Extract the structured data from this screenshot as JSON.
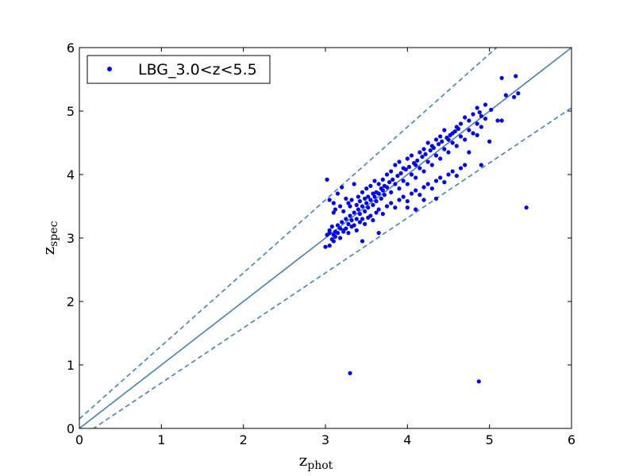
{
  "colors": {
    "points": "#0000ff",
    "lines": "#4682b4",
    "frame": "#000000",
    "background": "#ffffff"
  },
  "chart_data": {
    "type": "scatter",
    "title": "",
    "xlabel": {
      "main": "z",
      "sub": "phot"
    },
    "ylabel": {
      "main": "z",
      "sub": "spec"
    },
    "xlim": [
      0,
      6
    ],
    "ylim": [
      0,
      6
    ],
    "x_ticks": [
      "0",
      "1",
      "2",
      "3",
      "4",
      "5",
      "6"
    ],
    "y_ticks": [
      "0",
      "1",
      "2",
      "3",
      "4",
      "5",
      "6"
    ],
    "grid": false,
    "legend": {
      "position": "top-left",
      "entries": [
        "LBG_3.0<z<5.5"
      ]
    },
    "reference_lines": [
      {
        "label": "",
        "style": "solid",
        "points": [
          [
            0,
            0
          ],
          [
            6,
            6
          ]
        ]
      },
      {
        "label": "",
        "style": "dashed",
        "points": [
          [
            0,
            0.15
          ],
          [
            6,
            7.05
          ]
        ]
      },
      {
        "label": "",
        "style": "dashed",
        "points": [
          [
            0,
            -0.15
          ],
          [
            6,
            5.05
          ]
        ]
      }
    ],
    "series": [
      {
        "name": "LBG_3.0<z<5.5",
        "points": [
          [
            3.0,
            2.86
          ],
          [
            3.05,
            2.88
          ],
          [
            3.1,
            2.95
          ],
          [
            3.02,
            3.05
          ],
          [
            3.05,
            3.12
          ],
          [
            3.08,
            3.18
          ],
          [
            3.1,
            3.05
          ],
          [
            3.12,
            3.1
          ],
          [
            3.15,
            3.2
          ],
          [
            3.18,
            3.15
          ],
          [
            3.2,
            3.25
          ],
          [
            3.22,
            3.1
          ],
          [
            3.25,
            3.3
          ],
          [
            3.28,
            3.22
          ],
          [
            3.3,
            3.35
          ],
          [
            3.32,
            3.28
          ],
          [
            3.35,
            3.4
          ],
          [
            3.38,
            3.3
          ],
          [
            3.4,
            3.45
          ],
          [
            3.42,
            3.38
          ],
          [
            3.45,
            3.5
          ],
          [
            3.48,
            3.42
          ],
          [
            3.5,
            3.55
          ],
          [
            3.52,
            3.48
          ],
          [
            3.55,
            3.6
          ],
          [
            3.58,
            3.52
          ],
          [
            3.6,
            3.65
          ],
          [
            3.62,
            3.58
          ],
          [
            3.65,
            3.7
          ],
          [
            3.68,
            3.62
          ],
          [
            3.7,
            3.75
          ],
          [
            3.72,
            3.68
          ],
          [
            3.75,
            3.8
          ],
          [
            3.8,
            3.72
          ],
          [
            3.85,
            3.85
          ],
          [
            3.9,
            3.78
          ],
          [
            3.95,
            3.9
          ],
          [
            4.0,
            3.85
          ],
          [
            4.05,
            4.0
          ],
          [
            4.1,
            3.95
          ],
          [
            4.15,
            4.1
          ],
          [
            4.2,
            4.05
          ],
          [
            4.25,
            4.2
          ],
          [
            4.3,
            4.15
          ],
          [
            4.35,
            4.3
          ],
          [
            4.4,
            4.25
          ],
          [
            4.45,
            4.4
          ],
          [
            4.5,
            4.35
          ],
          [
            4.55,
            4.5
          ],
          [
            4.6,
            4.45
          ],
          [
            4.65,
            4.6
          ],
          [
            4.7,
            4.55
          ],
          [
            4.75,
            4.7
          ],
          [
            4.8,
            4.65
          ],
          [
            4.85,
            4.8
          ],
          [
            4.9,
            4.75
          ],
          [
            3.02,
            3.92
          ],
          [
            3.05,
            3.6
          ],
          [
            3.1,
            3.55
          ],
          [
            3.15,
            3.7
          ],
          [
            3.2,
            3.8
          ],
          [
            3.25,
            3.62
          ],
          [
            3.3,
            3.5
          ],
          [
            3.35,
            3.85
          ],
          [
            3.4,
            3.65
          ],
          [
            3.45,
            3.72
          ],
          [
            3.5,
            3.78
          ],
          [
            3.55,
            3.82
          ],
          [
            3.6,
            3.9
          ],
          [
            3.65,
            3.85
          ],
          [
            3.7,
            3.92
          ],
          [
            3.75,
            4.0
          ],
          [
            3.8,
            4.05
          ],
          [
            3.85,
            4.15
          ],
          [
            3.9,
            4.2
          ],
          [
            3.95,
            4.1
          ],
          [
            4.0,
            4.25
          ],
          [
            4.05,
            4.3
          ],
          [
            4.1,
            4.15
          ],
          [
            4.15,
            4.35
          ],
          [
            4.2,
            4.4
          ],
          [
            4.25,
            4.5
          ],
          [
            4.3,
            4.45
          ],
          [
            4.35,
            4.55
          ],
          [
            4.4,
            4.6
          ],
          [
            4.45,
            4.7
          ],
          [
            4.5,
            4.55
          ],
          [
            4.55,
            4.65
          ],
          [
            4.6,
            4.75
          ],
          [
            4.65,
            4.8
          ],
          [
            4.7,
            4.9
          ],
          [
            4.75,
            4.85
          ],
          [
            4.8,
            4.95
          ],
          [
            4.85,
            5.05
          ],
          [
            4.9,
            4.92
          ],
          [
            4.95,
            4.88
          ],
          [
            3.05,
            3.08
          ],
          [
            3.08,
            2.98
          ],
          [
            3.12,
            3.02
          ],
          [
            3.15,
            3.08
          ],
          [
            3.18,
            3.0
          ],
          [
            3.22,
            3.12
          ],
          [
            3.25,
            3.15
          ],
          [
            3.28,
            3.08
          ],
          [
            3.32,
            3.18
          ],
          [
            3.35,
            3.2
          ],
          [
            3.38,
            3.12
          ],
          [
            3.42,
            3.25
          ],
          [
            3.45,
            3.3
          ],
          [
            3.48,
            3.22
          ],
          [
            3.52,
            3.32
          ],
          [
            3.55,
            3.35
          ],
          [
            3.58,
            3.28
          ],
          [
            3.62,
            3.4
          ],
          [
            3.65,
            3.45
          ],
          [
            3.7,
            3.38
          ],
          [
            3.75,
            3.5
          ],
          [
            3.8,
            3.55
          ],
          [
            3.85,
            3.48
          ],
          [
            3.9,
            3.6
          ],
          [
            3.95,
            3.65
          ],
          [
            4.0,
            3.58
          ],
          [
            4.05,
            3.7
          ],
          [
            4.1,
            3.75
          ],
          [
            4.15,
            3.68
          ],
          [
            4.2,
            3.8
          ],
          [
            4.25,
            3.85
          ],
          [
            4.3,
            3.78
          ],
          [
            4.35,
            3.9
          ],
          [
            4.4,
            3.95
          ],
          [
            4.45,
            3.88
          ],
          [
            4.5,
            4.0
          ],
          [
            4.55,
            4.05
          ],
          [
            4.6,
            3.98
          ],
          [
            4.65,
            4.1
          ],
          [
            4.7,
            4.15
          ],
          [
            3.1,
            3.4
          ],
          [
            3.12,
            3.45
          ],
          [
            3.18,
            3.5
          ],
          [
            3.22,
            3.42
          ],
          [
            3.28,
            3.55
          ],
          [
            3.32,
            3.6
          ],
          [
            3.38,
            3.52
          ],
          [
            3.42,
            3.58
          ],
          [
            3.48,
            3.62
          ],
          [
            3.52,
            3.65
          ],
          [
            3.58,
            3.7
          ],
          [
            3.62,
            3.72
          ],
          [
            3.68,
            3.78
          ],
          [
            3.72,
            3.82
          ],
          [
            3.78,
            3.88
          ],
          [
            3.82,
            3.92
          ],
          [
            3.88,
            3.98
          ],
          [
            3.92,
            4.02
          ],
          [
            3.98,
            4.08
          ],
          [
            4.02,
            4.12
          ],
          [
            4.08,
            4.18
          ],
          [
            4.12,
            4.22
          ],
          [
            4.18,
            4.28
          ],
          [
            4.22,
            4.32
          ],
          [
            4.28,
            4.38
          ],
          [
            4.32,
            4.42
          ],
          [
            4.38,
            4.48
          ],
          [
            4.42,
            4.52
          ],
          [
            4.48,
            4.58
          ],
          [
            4.52,
            4.62
          ],
          [
            4.58,
            4.68
          ],
          [
            4.62,
            4.72
          ],
          [
            4.2,
            3.6
          ],
          [
            3.65,
            3.08
          ],
          [
            4.0,
            3.48
          ],
          [
            3.45,
            2.95
          ],
          [
            4.35,
            3.62
          ],
          [
            4.1,
            3.45
          ],
          [
            5.15,
            5.52
          ],
          [
            5.32,
            5.55
          ],
          [
            5.35,
            5.28
          ],
          [
            5.2,
            5.25
          ],
          [
            5.3,
            5.22
          ],
          [
            5.02,
            5.02
          ],
          [
            5.1,
            4.85
          ],
          [
            5.15,
            4.85
          ],
          [
            5.0,
            4.52
          ],
          [
            4.9,
            4.15
          ],
          [
            4.75,
            4.35
          ],
          [
            4.85,
            4.62
          ],
          [
            4.95,
            5.1
          ],
          [
            4.88,
            4.98
          ],
          [
            5.45,
            3.48
          ],
          [
            3.3,
            0.87
          ],
          [
            4.87,
            0.74
          ]
        ]
      }
    ]
  }
}
